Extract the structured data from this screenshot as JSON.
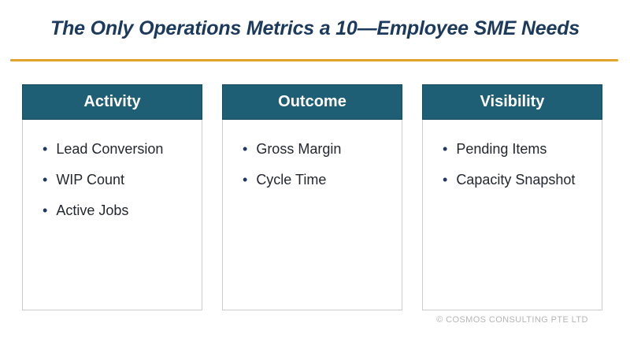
{
  "title": "The Only Operations Metrics a 10—Employee SME Needs",
  "columns": [
    {
      "header": "Activity",
      "items": [
        "Lead Conversion",
        "WIP Count",
        "Active Jobs"
      ]
    },
    {
      "header": "Outcome",
      "items": [
        "Gross Margin",
        "Cycle Time"
      ]
    },
    {
      "header": "Visibility",
      "items": [
        "Pending Items",
        "Capacity Snapshot"
      ]
    }
  ],
  "footer": "© COSMOS CONSULTING PTE LTD",
  "icons": {
    "bullet": "•"
  },
  "colors": {
    "title_text": "#1c3a5e",
    "divider_gold": "#e2a32a",
    "card_header_bg": "#1e5f75",
    "card_header_text": "#ffffff",
    "item_text": "#23272f",
    "bullet": "#1f3864",
    "card_border": "#cccccc",
    "footer_text": "#b5b5b5",
    "background": "#ffffff"
  }
}
